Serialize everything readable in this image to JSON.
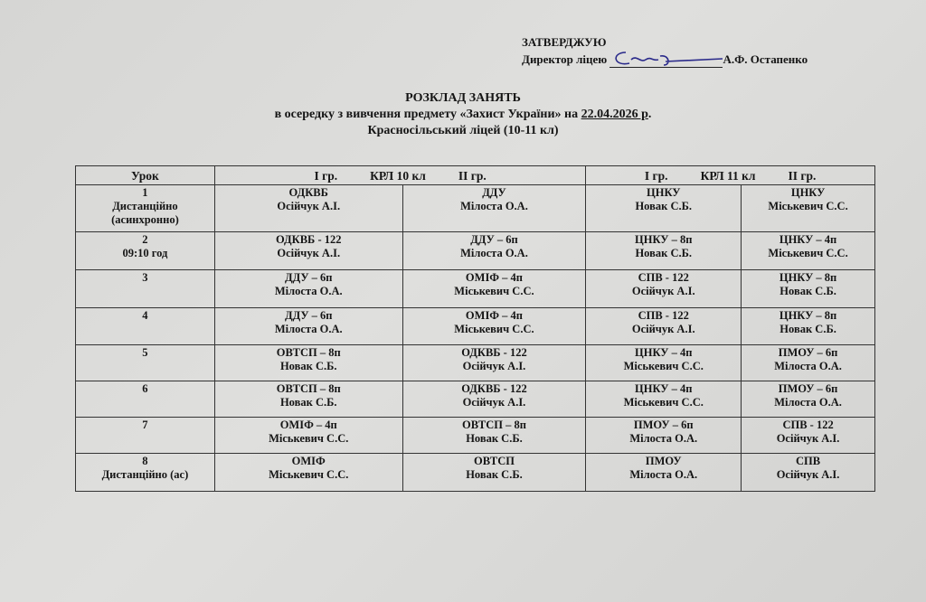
{
  "approval": {
    "heading": "ЗАТВЕРДЖУЮ",
    "position": "Директор ліцею",
    "name": "А.Ф. Остапенко"
  },
  "title": {
    "line1": "РОЗКЛАД  ЗАНЯТЬ",
    "line2_prefix": "в осередку з вивчення предмету «Захист України» на ",
    "date": "22.04.2026 р",
    "line2_suffix": ".",
    "line3": "Красносільський ліцей  (10-11 кл)"
  },
  "table": {
    "header": {
      "lesson": "Урок",
      "g1": "І гр.",
      "class10": "КРЛ 10  кл",
      "g2": "ІІ гр.",
      "g1b": "І гр.",
      "class11": "КРЛ 11 кл",
      "g2b": "ІІ гр."
    },
    "rows": [
      {
        "n": "1",
        "note": "Дистанційно (асинхронно)",
        "c": [
          [
            "ОДКВБ",
            "Осійчук А.І."
          ],
          [
            "ДДУ",
            "Мілоста О.А."
          ],
          [
            "ЦНКУ",
            "Новак  С.Б."
          ],
          [
            "ЦНКУ",
            "Міськевич С.С."
          ]
        ]
      },
      {
        "n": "2",
        "note": "09:10 год",
        "c": [
          [
            "ОДКВБ - 122",
            "Осійчук А.І."
          ],
          [
            "ДДУ – 6п",
            "Мілоста О.А."
          ],
          [
            "ЦНКУ – 8п",
            "Новак С.Б."
          ],
          [
            "ЦНКУ – 4п",
            "Міськевич С.С."
          ]
        ]
      },
      {
        "n": "3",
        "note": "",
        "c": [
          [
            "ДДУ – 6п",
            "Мілоста О.А."
          ],
          [
            "ОМІФ – 4п",
            "Міськевич С.С."
          ],
          [
            "СПВ - 122",
            "Осійчук А.І."
          ],
          [
            "ЦНКУ – 8п",
            "Новак  С.Б."
          ]
        ]
      },
      {
        "n": "4",
        "note": "",
        "c": [
          [
            "ДДУ – 6п",
            "Мілоста О.А."
          ],
          [
            "ОМІФ – 4п",
            "Міськевич С.С."
          ],
          [
            "СПВ - 122",
            "Осійчук А.І."
          ],
          [
            "ЦНКУ – 8п",
            "Новак  С.Б."
          ]
        ]
      },
      {
        "n": "5",
        "note": "",
        "c": [
          [
            "ОВТСП – 8п",
            "Новак  С.Б."
          ],
          [
            "ОДКВБ - 122",
            "Осійчук А.І."
          ],
          [
            "ЦНКУ – 4п",
            "Міськевич С.С."
          ],
          [
            "ПМОУ – 6п",
            "Мілоста О.А."
          ]
        ]
      },
      {
        "n": "6",
        "note": "",
        "c": [
          [
            "ОВТСП – 8п",
            "Новак С.Б."
          ],
          [
            "ОДКВБ - 122",
            "Осійчук А.І."
          ],
          [
            "ЦНКУ – 4п",
            "Міськевич С.С."
          ],
          [
            "ПМОУ – 6п",
            "Мілоста О.А."
          ]
        ]
      },
      {
        "n": "7",
        "note": "",
        "c": [
          [
            "ОМІФ – 4п",
            "Міськевич С.С."
          ],
          [
            "ОВТСП – 8п",
            "Новак  С.Б."
          ],
          [
            "ПМОУ – 6п",
            "Мілоста О.А."
          ],
          [
            "СПВ - 122",
            "Осійчук А.І."
          ]
        ]
      },
      {
        "n": "8",
        "note": "Дистанційно (ас)",
        "c": [
          [
            "ОМІФ",
            "Міськевич С.С."
          ],
          [
            "ОВТСП",
            "Новак С.Б."
          ],
          [
            "ПМОУ",
            "Мілоста О.А."
          ],
          [
            "СПВ",
            "Осійчук А.І."
          ]
        ]
      }
    ]
  }
}
